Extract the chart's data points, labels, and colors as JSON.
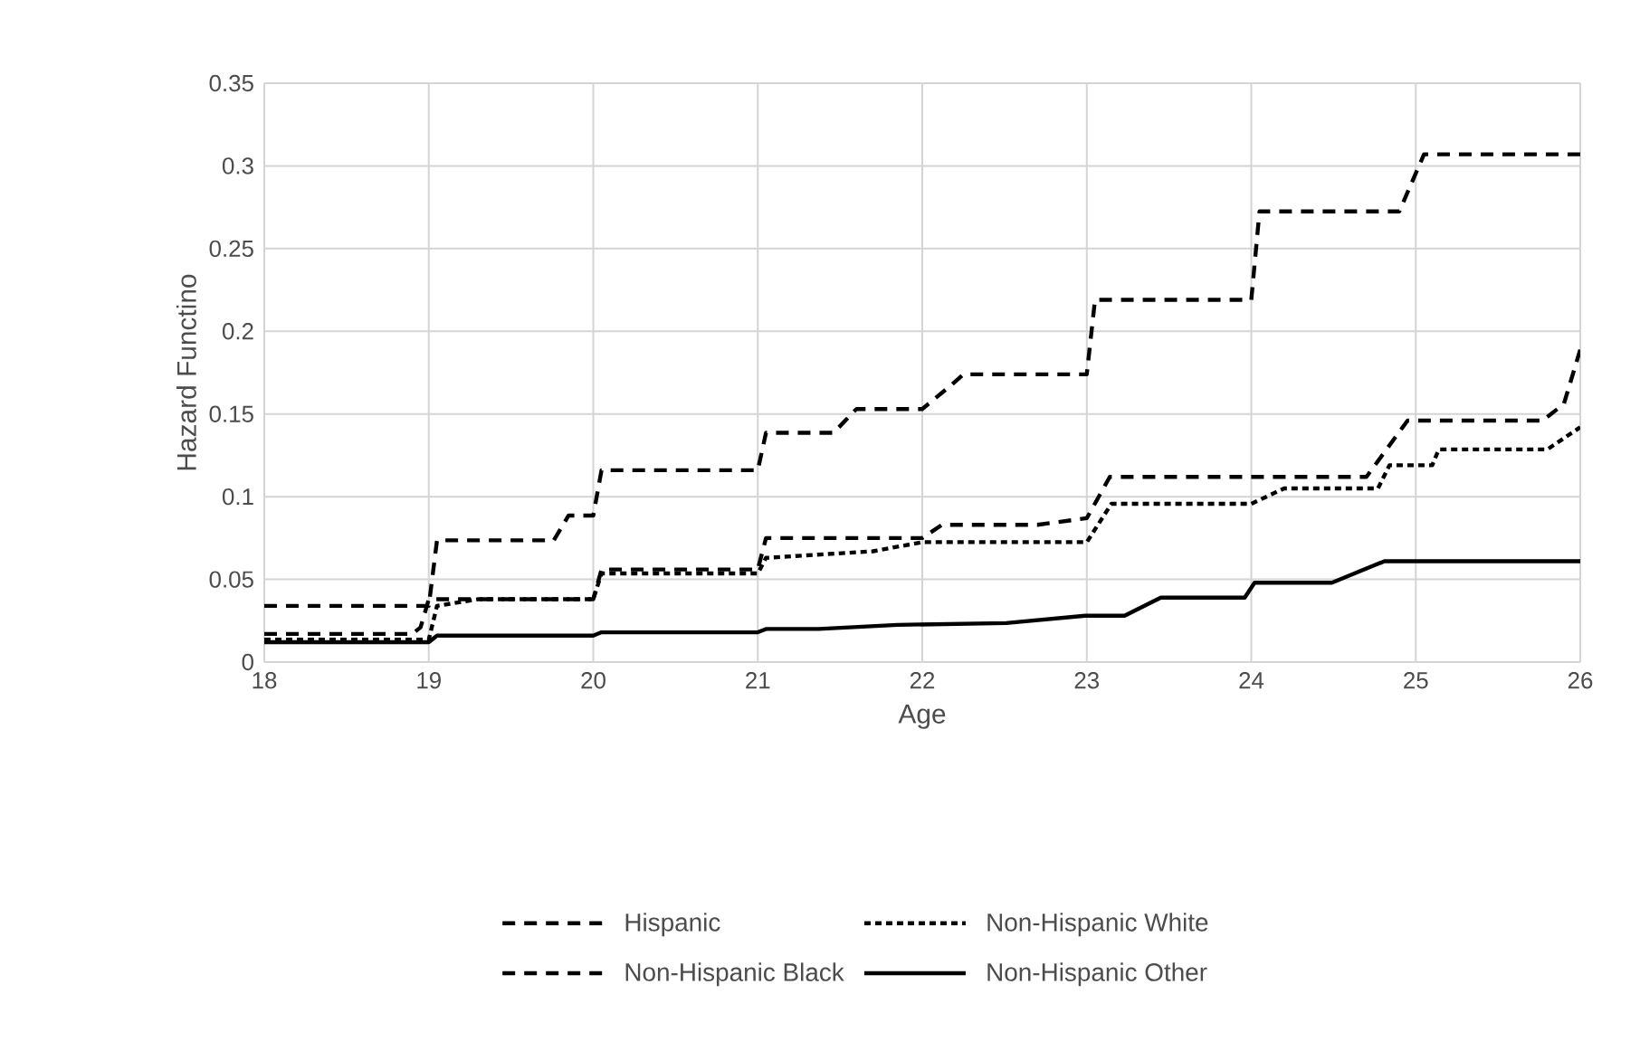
{
  "chart_data": {
    "type": "line",
    "xlabel": "Age",
    "ylabel": "Hazard Functino",
    "xlim": [
      18,
      26
    ],
    "xticks": [
      18,
      19,
      20,
      21,
      22,
      23,
      24,
      25,
      26
    ],
    "ylim": [
      0,
      0.35
    ],
    "yticks": [
      0,
      0.05,
      0.1,
      0.15,
      0.2,
      0.25,
      0.3,
      0.35
    ],
    "grid": true,
    "legend": "bottom",
    "marker": "none",
    "series": [
      {
        "name": "Hispanic",
        "color": "#000000",
        "line_style": "dashed",
        "x": [
          18,
          18.9,
          18.95,
          19.0,
          20.0,
          20.05,
          21.0,
          21.05,
          22.0,
          22.12,
          22.7,
          23.0,
          23.14,
          24.7,
          24.95,
          25.77,
          25.9,
          26
        ],
        "values": [
          0.017,
          0.017,
          0.021,
          0.038,
          0.038,
          0.056,
          0.056,
          0.075,
          0.075,
          0.083,
          0.083,
          0.087,
          0.112,
          0.112,
          0.146,
          0.146,
          0.156,
          0.189
        ]
      },
      {
        "name": "Non-Hispanic White",
        "color": "#000000",
        "line_style": "dotted",
        "x": [
          18,
          19.0,
          19.05,
          19.3,
          20.0,
          20.05,
          21.0,
          21.05,
          21.7,
          22.0,
          23.0,
          23.15,
          24.0,
          24.2,
          24.77,
          24.84,
          25.1,
          25.14,
          25.8,
          26
        ],
        "values": [
          0.0136,
          0.0136,
          0.034,
          0.038,
          0.038,
          0.0536,
          0.0536,
          0.063,
          0.067,
          0.0725,
          0.0725,
          0.0957,
          0.0957,
          0.105,
          0.105,
          0.119,
          0.119,
          0.1286,
          0.1286,
          0.142
        ]
      },
      {
        "name": "Non-Hispanic Black",
        "color": "#000000",
        "line_style": "dashed",
        "x": [
          18,
          19.0,
          19.05,
          19.76,
          19.85,
          20.0,
          20.05,
          21.0,
          21.05,
          21.46,
          21.6,
          22.0,
          22.17,
          22.25,
          23.0,
          23.05,
          24.0,
          24.05,
          24.9,
          25.05,
          26
        ],
        "values": [
          0.034,
          0.034,
          0.0736,
          0.0736,
          0.0886,
          0.0886,
          0.116,
          0.116,
          0.1386,
          0.1386,
          0.153,
          0.153,
          0.167,
          0.174,
          0.174,
          0.219,
          0.219,
          0.2725,
          0.2725,
          0.307,
          0.307
        ]
      },
      {
        "name": "Non-Hispanic Other",
        "color": "#000000",
        "line_style": "solid",
        "x": [
          18,
          19.0,
          19.05,
          20.0,
          20.05,
          21.0,
          21.05,
          21.37,
          21.85,
          22.51,
          22.99,
          23.23,
          23.45,
          23.96,
          24.02,
          24.49,
          24.81,
          26
        ],
        "values": [
          0.012,
          0.012,
          0.016,
          0.016,
          0.018,
          0.018,
          0.02,
          0.02,
          0.0225,
          0.0236,
          0.028,
          0.028,
          0.039,
          0.039,
          0.048,
          0.048,
          0.061,
          0.061
        ]
      }
    ]
  }
}
